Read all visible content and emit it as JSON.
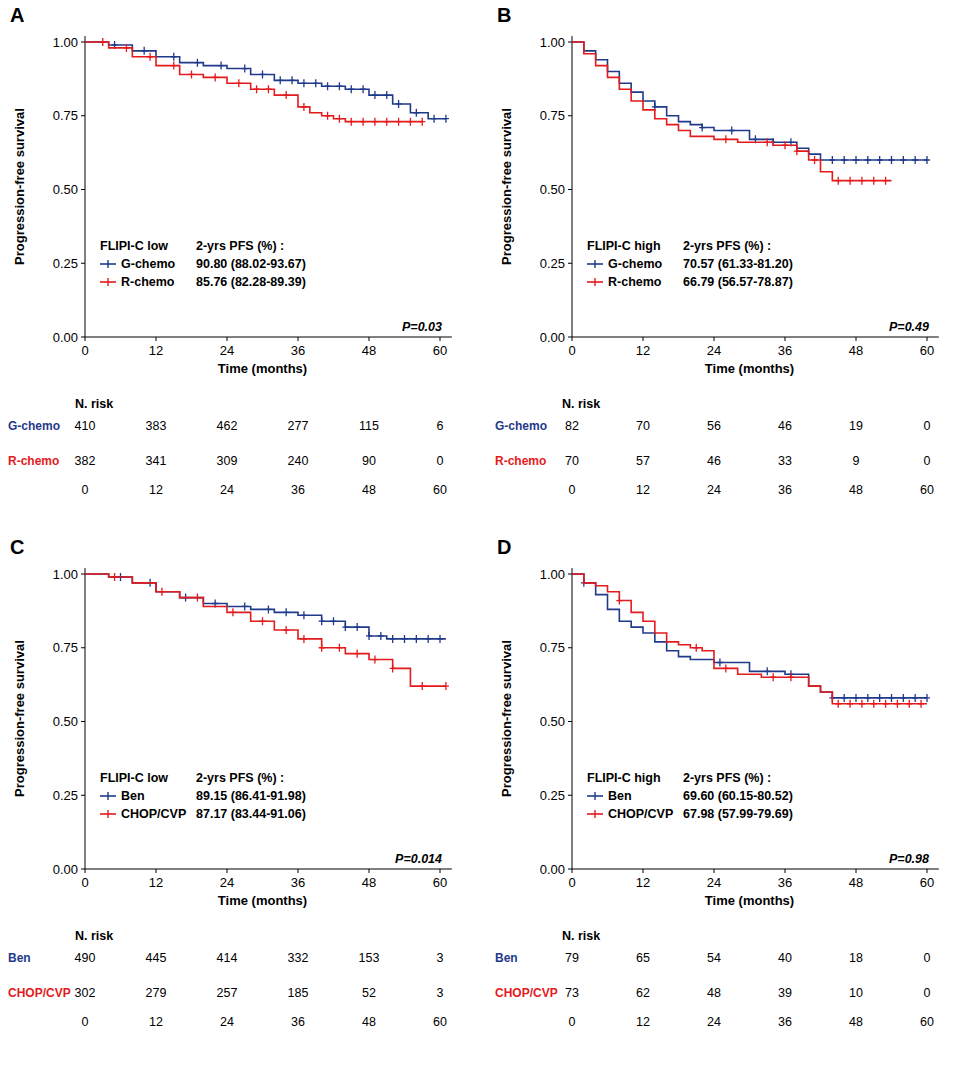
{
  "chart_data": [
    {
      "type": "line",
      "title": "A",
      "x_label": "Time (months)",
      "y_label": "Progression-free survival",
      "xlim": [
        0,
        62
      ],
      "xticks": [
        0,
        12,
        24,
        36,
        48,
        60
      ],
      "ylim": [
        0,
        1.02
      ],
      "yticks": [
        {
          "value": 0,
          "label": "0.00"
        },
        {
          "value": 0.25,
          "label": "0.25"
        },
        {
          "value": 0.5,
          "label": "0.50"
        },
        {
          "value": 0.75,
          "label": "0.75"
        },
        {
          "value": 1,
          "label": "1.00"
        }
      ],
      "legend_title": "FLIPI-C low",
      "legend_header": "2-yrs PFS (%) :",
      "annotation": "P=0.03",
      "risk_table_title": "N. risk",
      "at_risk_x": [
        0,
        12,
        24,
        36,
        48,
        60
      ],
      "series": [
        {
          "name": "G-chemo",
          "color": "#1f3a8a",
          "pfs_label": "90.80 (88.02-93.67)",
          "x": [
            0,
            4,
            8,
            12,
            16,
            20,
            24,
            28,
            32,
            36,
            40,
            44,
            48,
            52,
            55,
            58,
            61
          ],
          "values": [
            1,
            0.99,
            0.97,
            0.95,
            0.93,
            0.92,
            0.91,
            0.89,
            0.87,
            0.86,
            0.85,
            0.84,
            0.82,
            0.79,
            0.76,
            0.74,
            0.74
          ],
          "censored": [
            5,
            10,
            15,
            19,
            23,
            27,
            30,
            33,
            35,
            37,
            39,
            41,
            43,
            45,
            47,
            49,
            51,
            53,
            56,
            59,
            61
          ],
          "at_risk": [
            410,
            383,
            462,
            277,
            115,
            6
          ]
        },
        {
          "name": "R-chemo",
          "color": "#e41a1c",
          "pfs_label": "85.76 (82.28-89.39)",
          "x": [
            0,
            4,
            8,
            12,
            16,
            20,
            24,
            28,
            32,
            36,
            38,
            40,
            42,
            44,
            50,
            57
          ],
          "values": [
            1,
            0.98,
            0.95,
            0.92,
            0.89,
            0.88,
            0.86,
            0.84,
            0.82,
            0.78,
            0.76,
            0.75,
            0.74,
            0.73,
            0.73,
            0.73
          ],
          "censored": [
            3,
            7,
            11,
            15,
            18,
            22,
            26,
            29,
            31,
            34,
            37,
            41,
            43,
            45,
            47,
            49,
            51,
            53,
            55,
            57
          ],
          "at_risk": [
            382,
            341,
            309,
            240,
            90,
            0
          ]
        }
      ]
    },
    {
      "type": "line",
      "title": "B",
      "x_label": "Time (months)",
      "y_label": "Progression-free survival",
      "xlim": [
        0,
        62
      ],
      "xticks": [
        0,
        12,
        24,
        36,
        48,
        60
      ],
      "ylim": [
        0,
        1.02
      ],
      "yticks": [
        {
          "value": 0,
          "label": "0.00"
        },
        {
          "value": 0.25,
          "label": "0.25"
        },
        {
          "value": 0.5,
          "label": "0.50"
        },
        {
          "value": 0.75,
          "label": "0.75"
        },
        {
          "value": 1,
          "label": "1.00"
        }
      ],
      "legend_title": "FLIPI-C high",
      "legend_header": "2-yrs PFS (%) :",
      "annotation": "P=0.49",
      "risk_table_title": "N. risk",
      "at_risk_x": [
        0,
        12,
        24,
        36,
        48,
        60
      ],
      "series": [
        {
          "name": "G-chemo",
          "color": "#1f3a8a",
          "pfs_label": "70.57 (61.33-81.20)",
          "x": [
            0,
            2,
            4,
            6,
            8,
            10,
            12,
            14,
            16,
            18,
            20,
            22,
            24,
            30,
            34,
            38,
            40,
            42,
            60
          ],
          "values": [
            1,
            0.97,
            0.94,
            0.9,
            0.86,
            0.83,
            0.8,
            0.78,
            0.75,
            0.73,
            0.72,
            0.71,
            0.7,
            0.67,
            0.66,
            0.64,
            0.62,
            0.6,
            0.6
          ],
          "censored": [
            14,
            22,
            27,
            31,
            34,
            37,
            44,
            46,
            48,
            50,
            52,
            54,
            56,
            58,
            60
          ],
          "at_risk": [
            82,
            70,
            56,
            46,
            19,
            0
          ]
        },
        {
          "name": "R-chemo",
          "color": "#e41a1c",
          "pfs_label": "66.79 (56.57-78.87)",
          "x": [
            0,
            2,
            4,
            6,
            8,
            10,
            12,
            14,
            16,
            18,
            20,
            24,
            28,
            34,
            38,
            40,
            42,
            44,
            54
          ],
          "values": [
            1,
            0.96,
            0.92,
            0.88,
            0.84,
            0.8,
            0.77,
            0.74,
            0.72,
            0.7,
            0.68,
            0.67,
            0.66,
            0.65,
            0.63,
            0.6,
            0.56,
            0.53,
            0.53
          ],
          "censored": [
            26,
            33,
            36,
            38,
            41,
            45,
            47,
            49,
            51,
            53
          ],
          "at_risk": [
            70,
            57,
            46,
            33,
            9,
            0
          ]
        }
      ]
    },
    {
      "type": "line",
      "title": "C",
      "x_label": "Time (months)",
      "y_label": "Progression-free survival",
      "xlim": [
        0,
        62
      ],
      "xticks": [
        0,
        12,
        24,
        36,
        48,
        60
      ],
      "ylim": [
        0,
        1.02
      ],
      "yticks": [
        {
          "value": 0,
          "label": "0.00"
        },
        {
          "value": 0.25,
          "label": "0.25"
        },
        {
          "value": 0.5,
          "label": "0.50"
        },
        {
          "value": 0.75,
          "label": "0.75"
        },
        {
          "value": 1,
          "label": "1.00"
        }
      ],
      "legend_title": "FLIPI-C low",
      "legend_header": "2-yrs PFS (%) :",
      "annotation": "P=0.014",
      "risk_table_title": "N. risk",
      "at_risk_x": [
        0,
        12,
        24,
        36,
        48,
        60
      ],
      "series": [
        {
          "name": "Ben",
          "color": "#1f3a8a",
          "pfs_label": "89.15 (86.41-91.98)",
          "x": [
            0,
            4,
            8,
            12,
            16,
            20,
            24,
            28,
            32,
            36,
            40,
            44,
            48,
            51,
            61
          ],
          "values": [
            1,
            0.99,
            0.97,
            0.94,
            0.92,
            0.9,
            0.89,
            0.88,
            0.87,
            0.86,
            0.84,
            0.82,
            0.79,
            0.78,
            0.78
          ],
          "censored": [
            6,
            11,
            17,
            22,
            27,
            31,
            34,
            37,
            40,
            42,
            44,
            46,
            48,
            50,
            52,
            54,
            56,
            58,
            60
          ],
          "at_risk": [
            490,
            445,
            414,
            332,
            153,
            3
          ]
        },
        {
          "name": "CHOP/CVP",
          "color": "#e41a1c",
          "pfs_label": "87.17 (83.44-91.06)",
          "x": [
            0,
            4,
            8,
            12,
            16,
            20,
            24,
            28,
            32,
            36,
            40,
            44,
            48,
            52,
            55,
            61
          ],
          "values": [
            1,
            0.99,
            0.97,
            0.94,
            0.92,
            0.89,
            0.87,
            0.84,
            0.81,
            0.78,
            0.75,
            0.73,
            0.71,
            0.68,
            0.62,
            0.62
          ],
          "censored": [
            5,
            13,
            19,
            25,
            30,
            34,
            37,
            40,
            43,
            46,
            49,
            52,
            57,
            61
          ],
          "at_risk": [
            302,
            279,
            257,
            185,
            52,
            3
          ]
        }
      ]
    },
    {
      "type": "line",
      "title": "D",
      "x_label": "Time (months)",
      "y_label": "Progression-free survival",
      "xlim": [
        0,
        62
      ],
      "xticks": [
        0,
        12,
        24,
        36,
        48,
        60
      ],
      "ylim": [
        0,
        1.02
      ],
      "yticks": [
        {
          "value": 0,
          "label": "0.00"
        },
        {
          "value": 0.25,
          "label": "0.25"
        },
        {
          "value": 0.5,
          "label": "0.50"
        },
        {
          "value": 0.75,
          "label": "0.75"
        },
        {
          "value": 1,
          "label": "1.00"
        }
      ],
      "legend_title": "FLIPI-C high",
      "legend_header": "2-yrs PFS (%) :",
      "annotation": "P=0.98",
      "risk_table_title": "N. risk",
      "at_risk_x": [
        0,
        12,
        24,
        36,
        48,
        60
      ],
      "series": [
        {
          "name": "Ben",
          "color": "#1f3a8a",
          "pfs_label": "69.60 (60.15-80.52)",
          "x": [
            0,
            2,
            4,
            6,
            8,
            10,
            12,
            14,
            16,
            18,
            20,
            24,
            30,
            36,
            40,
            42,
            44,
            60
          ],
          "values": [
            1,
            0.97,
            0.93,
            0.88,
            0.84,
            0.82,
            0.8,
            0.77,
            0.74,
            0.72,
            0.71,
            0.7,
            0.67,
            0.66,
            0.62,
            0.6,
            0.58,
            0.58
          ],
          "censored": [
            2,
            25,
            33,
            37,
            44,
            46,
            48,
            50,
            52,
            54,
            56,
            58,
            60
          ],
          "at_risk": [
            79,
            65,
            54,
            40,
            18,
            0
          ]
        },
        {
          "name": "CHOP/CVP",
          "color": "#e41a1c",
          "pfs_label": "67.98 (57.99-79.69)",
          "x": [
            0,
            2,
            4,
            6,
            8,
            10,
            12,
            14,
            16,
            18,
            20,
            22,
            24,
            28,
            32,
            38,
            40,
            42,
            44,
            60
          ],
          "values": [
            1,
            0.97,
            0.96,
            0.94,
            0.91,
            0.87,
            0.84,
            0.8,
            0.77,
            0.76,
            0.75,
            0.74,
            0.68,
            0.66,
            0.65,
            0.65,
            0.62,
            0.6,
            0.56,
            0.56
          ],
          "censored": [
            8,
            21,
            26,
            34,
            37,
            45,
            47,
            49,
            51,
            53,
            55,
            57,
            59
          ],
          "at_risk": [
            73,
            62,
            48,
            39,
            10,
            0
          ]
        }
      ]
    }
  ]
}
